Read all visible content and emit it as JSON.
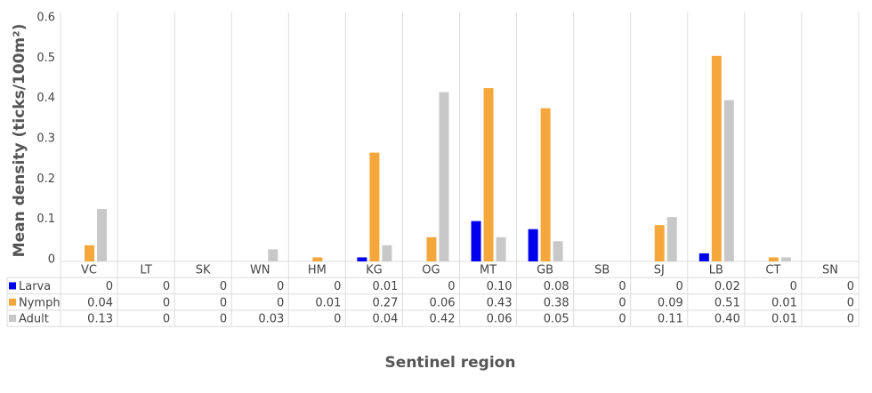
{
  "chart_data": {
    "type": "bar",
    "y_label": "Mean density (ticks/100m²)",
    "x_label": "Sentinel region",
    "categories": [
      "VC",
      "LT",
      "SK",
      "WN",
      "HM",
      "KG",
      "OG",
      "MT",
      "GB",
      "SB",
      "SJ",
      "LB",
      "CT",
      "SN"
    ],
    "series": [
      {
        "name": "Larva",
        "color": "#0000ee",
        "values": [
          0,
          0,
          0,
          0,
          0,
          0.01,
          0,
          0.1,
          0.08,
          0,
          0,
          0.02,
          0,
          0
        ],
        "value_labels": [
          "0",
          "0",
          "0",
          "0",
          "0",
          "0.01",
          "0",
          "0.10",
          "0.08",
          "0",
          "0",
          "0.02",
          "0",
          "0"
        ]
      },
      {
        "name": "Nymph",
        "color": "#f5a73b",
        "values": [
          0.04,
          0,
          0,
          0,
          0.01,
          0.27,
          0.06,
          0.43,
          0.38,
          0,
          0.09,
          0.51,
          0.01,
          0
        ],
        "value_labels": [
          "0.04",
          "0",
          "0",
          "0",
          "0.01",
          "0.27",
          "0.06",
          "0.43",
          "0.38",
          "0",
          "0.09",
          "0.51",
          "0.01",
          "0"
        ]
      },
      {
        "name": "Adult",
        "color": "#c8c8c8",
        "values": [
          0.13,
          0,
          0,
          0.03,
          0,
          0.04,
          0.42,
          0.06,
          0.05,
          0,
          0.11,
          0.4,
          0.01,
          0
        ],
        "value_labels": [
          "0.13",
          "0",
          "0",
          "0.03",
          "0",
          "0.04",
          "0.42",
          "0.06",
          "0.05",
          "0",
          "0.11",
          "0.40",
          "0.01",
          "0"
        ]
      }
    ],
    "ylim": [
      0,
      0.6
    ],
    "yticks": [
      0,
      0.1,
      0.2,
      0.3,
      0.4,
      0.5,
      0.6
    ]
  }
}
